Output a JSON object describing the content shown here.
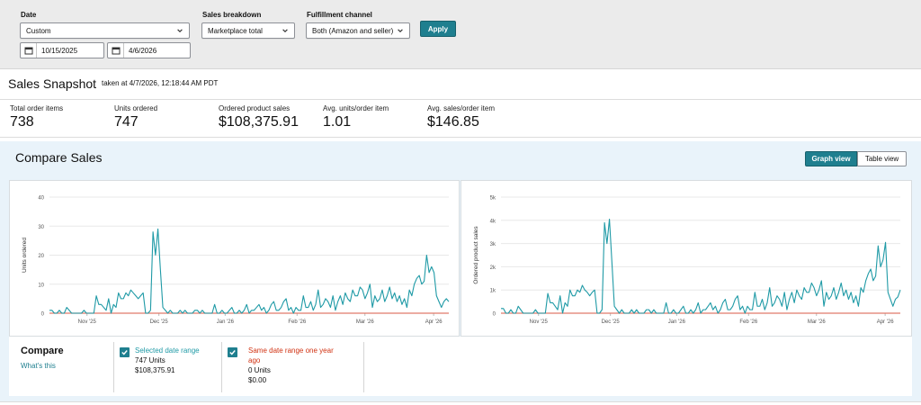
{
  "filters": {
    "date": {
      "label": "Date",
      "value": "Custom",
      "start": "10/15/2025",
      "end": "4/6/2026"
    },
    "sales_breakdown": {
      "label": "Sales breakdown",
      "value": "Marketplace total"
    },
    "fulfillment": {
      "label": "Fulfillment channel",
      "value": "Both (Amazon and seller)"
    },
    "apply_label": "Apply"
  },
  "snapshot": {
    "title": "Sales Snapshot",
    "taken": "taken at 4/7/2026, 12:18:44 AM PDT",
    "metrics": [
      {
        "label": "Total order items",
        "value": "738"
      },
      {
        "label": "Units ordered",
        "value": "747"
      },
      {
        "label": "Ordered product sales",
        "value": "$108,375.91"
      },
      {
        "label": "Avg. units/order item",
        "value": "1.01"
      },
      {
        "label": "Avg. sales/order item",
        "value": "$146.85"
      }
    ]
  },
  "compare": {
    "title": "Compare Sales",
    "graph_view": "Graph view",
    "table_view": "Table view",
    "legend_title": "Compare",
    "whats_this": "What's this",
    "selected": {
      "label": "Selected date range",
      "units": "747 Units",
      "sales": "$108,375.91"
    },
    "prior": {
      "label_line1": "Same date range one year",
      "label_line2": "ago",
      "units": "0 Units",
      "sales": "$0.00"
    }
  },
  "colors": {
    "accent": "#1f7f8f",
    "series_current": "#1f9aa6",
    "series_prior": "#e07a6a"
  },
  "chart_data": [
    {
      "type": "line",
      "title": "",
      "xlabel": "",
      "ylabel": "Units ordered",
      "ylim": [
        0,
        40
      ],
      "yticks": [
        "0",
        "10",
        "20",
        "30",
        "40"
      ],
      "xticks": [
        "Nov '25",
        "Dec '25",
        "Jan '26",
        "Feb '26",
        "Mar '26",
        "Apr '26"
      ],
      "x_range": [
        "2025-10-15",
        "2026-04-06"
      ],
      "grid": true,
      "series": [
        {
          "values": [
            1,
            1,
            0,
            0,
            1,
            0,
            0,
            2,
            1,
            0,
            0,
            0,
            0,
            0,
            1,
            0,
            0,
            0,
            0,
            6,
            3,
            3,
            2,
            1,
            5,
            0,
            3,
            2,
            7,
            5,
            5,
            7,
            6,
            8,
            7,
            6,
            5,
            6,
            7,
            0,
            0,
            1,
            28,
            20,
            29,
            15,
            2,
            1,
            0,
            1,
            0,
            0,
            0,
            1,
            0,
            1,
            0,
            0,
            0,
            1,
            1,
            0,
            1,
            0,
            0,
            0,
            0,
            3,
            0,
            0,
            1,
            0,
            0,
            1,
            2,
            0,
            0,
            1,
            0,
            1,
            3,
            0,
            1,
            1,
            2,
            3,
            1,
            2,
            0,
            1,
            3,
            4,
            1,
            1,
            2,
            4,
            5,
            1,
            2,
            0,
            2,
            1,
            1,
            6,
            2,
            2,
            4,
            1,
            3,
            8,
            2,
            3,
            5,
            4,
            2,
            6,
            1,
            4,
            6,
            3,
            7,
            5,
            4,
            8,
            6,
            6,
            9,
            8,
            5,
            7,
            10,
            2,
            6,
            4,
            5,
            8,
            4,
            6,
            9,
            5,
            7,
            4,
            6,
            3,
            5,
            2,
            8,
            6,
            10,
            12,
            13,
            10,
            11,
            20,
            14,
            16,
            14,
            6,
            4,
            2,
            4,
            5,
            4
          ]
        },
        {
          "values": [
            0,
            0
          ]
        }
      ]
    },
    {
      "type": "line",
      "title": "",
      "xlabel": "",
      "ylabel": "Ordered product sales",
      "ylim": [
        0,
        5000
      ],
      "yticks": [
        "0",
        "1k",
        "2k",
        "3k",
        "4k",
        "5k"
      ],
      "xticks": [
        "Nov '25",
        "Dec '25",
        "Jan '26",
        "Feb '26",
        "Mar '26",
        "Apr '26"
      ],
      "x_range": [
        "2025-10-15",
        "2026-04-06"
      ],
      "grid": true,
      "series": [
        {
          "values": [
            200,
            200,
            0,
            0,
            150,
            0,
            0,
            300,
            150,
            0,
            0,
            0,
            0,
            0,
            150,
            0,
            0,
            0,
            0,
            850,
            450,
            450,
            300,
            150,
            750,
            0,
            450,
            300,
            1000,
            750,
            750,
            1000,
            900,
            1200,
            1000,
            900,
            750,
            900,
            1000,
            0,
            0,
            150,
            3900,
            3000,
            4050,
            2200,
            300,
            150,
            0,
            150,
            0,
            0,
            0,
            150,
            0,
            150,
            0,
            0,
            0,
            150,
            150,
            0,
            150,
            0,
            0,
            0,
            0,
            450,
            0,
            0,
            150,
            0,
            0,
            150,
            300,
            0,
            0,
            150,
            0,
            150,
            450,
            0,
            150,
            150,
            300,
            450,
            150,
            300,
            0,
            150,
            450,
            600,
            150,
            150,
            300,
            600,
            750,
            150,
            300,
            0,
            300,
            150,
            150,
            900,
            300,
            300,
            600,
            150,
            450,
            1100,
            300,
            450,
            750,
            600,
            300,
            900,
            150,
            600,
            900,
            450,
            1000,
            750,
            600,
            1100,
            900,
            900,
            1300,
            1100,
            750,
            1000,
            1400,
            300,
            900,
            600,
            750,
            1100,
            600,
            900,
            1300,
            750,
            1000,
            600,
            900,
            450,
            750,
            300,
            1100,
            900,
            1400,
            1700,
            1900,
            1400,
            1600,
            2900,
            2000,
            2300,
            3050,
            900,
            600,
            300,
            600,
            700,
            1000
          ]
        },
        {
          "values": [
            0,
            0
          ]
        }
      ]
    }
  ]
}
